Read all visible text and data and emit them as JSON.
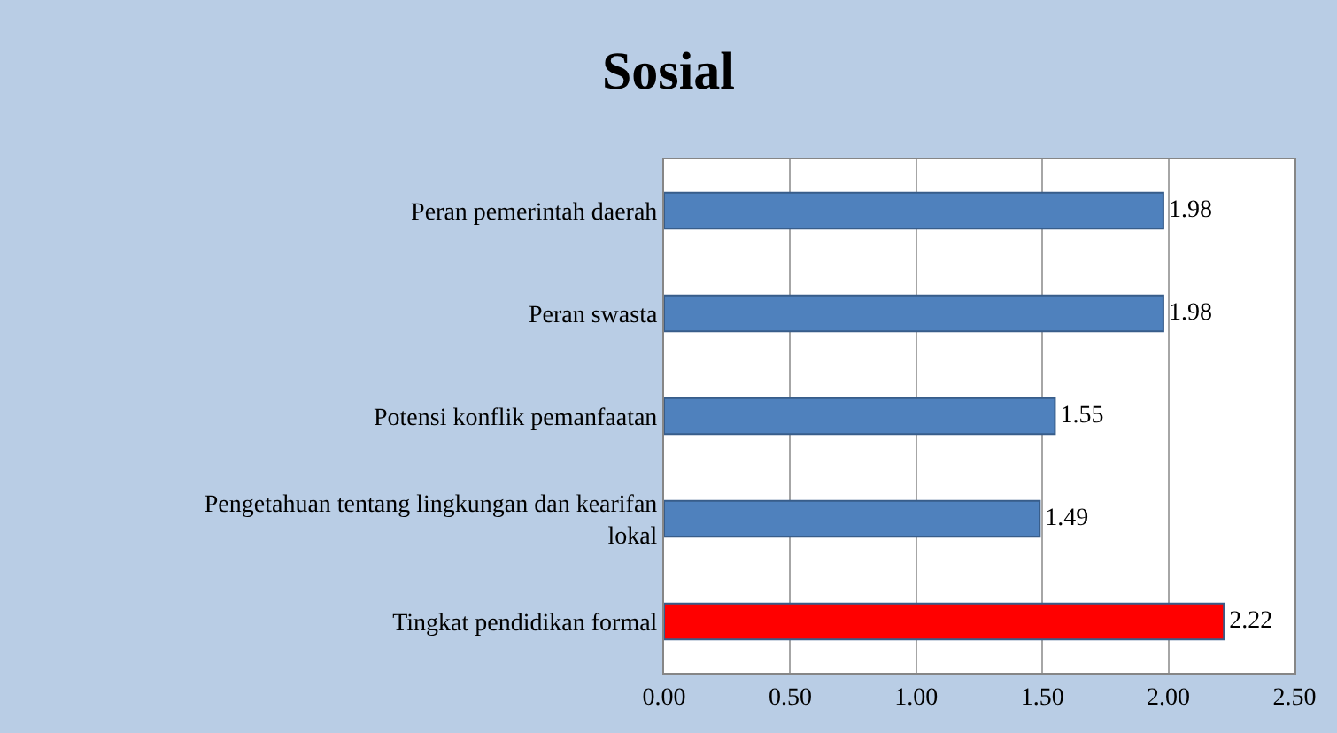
{
  "chart_data": {
    "type": "bar",
    "orientation": "horizontal",
    "title": "Sosial",
    "categories": [
      "Peran pemerintah daerah",
      "Peran swasta",
      "Potensi konflik pemanfaatan",
      "Pengetahuan tentang lingkungan dan kearifan lokal",
      "Tingkat pendidikan formal"
    ],
    "values": [
      1.98,
      1.98,
      1.55,
      1.49,
      2.22
    ],
    "colors": [
      "#4f81bd",
      "#4f81bd",
      "#4f81bd",
      "#4f81bd",
      "#ff0000"
    ],
    "xlim": [
      0,
      2.5
    ],
    "xticks": [
      {
        "value": 0,
        "label": "0.00"
      },
      {
        "value": 0.5,
        "label": "0.50"
      },
      {
        "value": 1,
        "label": "1.00"
      },
      {
        "value": 1.5,
        "label": "1.50"
      },
      {
        "value": 2,
        "label": "2.00"
      },
      {
        "value": 2.5,
        "label": "2.50"
      }
    ],
    "grid": "x",
    "data_labels": true
  }
}
